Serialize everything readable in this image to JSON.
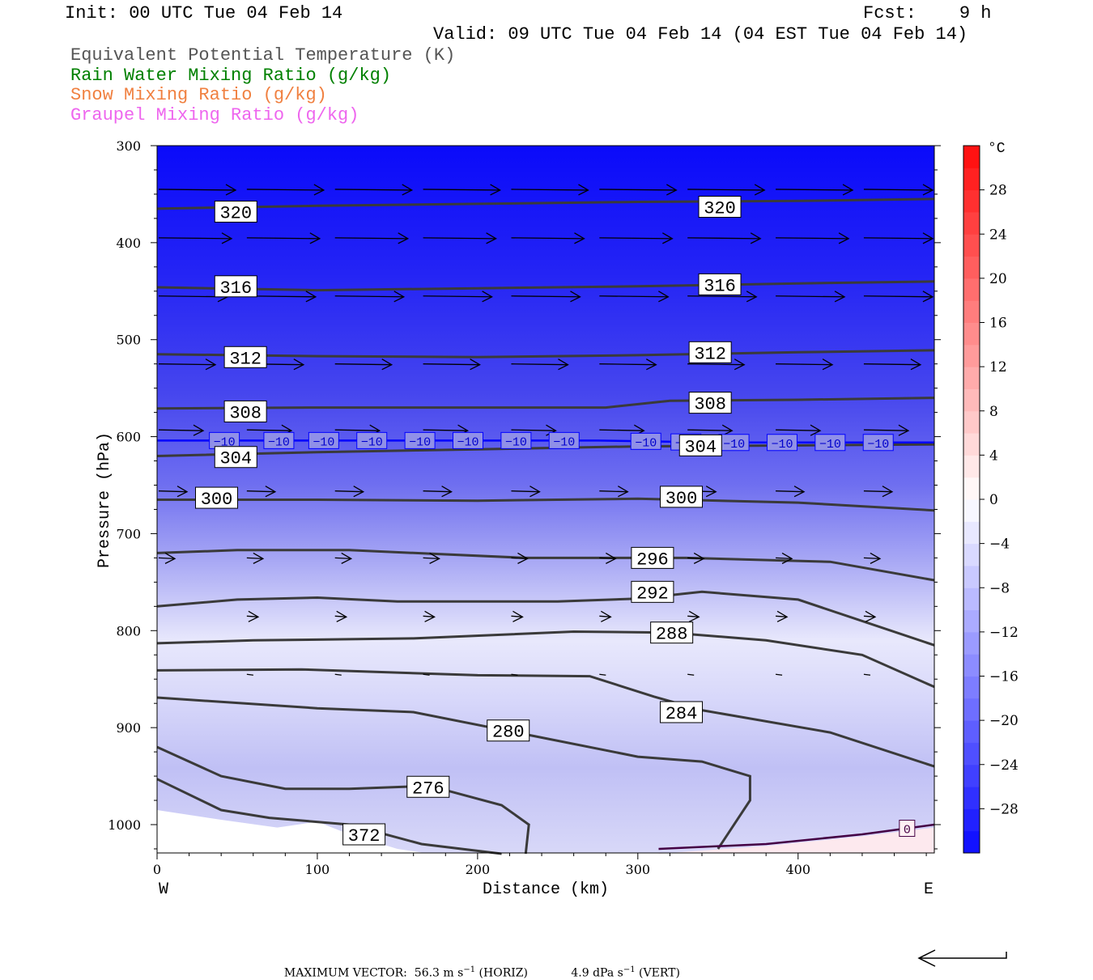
{
  "header": {
    "init": "Init: 00 UTC Tue 04 Feb 14",
    "fcst": "Fcst:    9 h",
    "valid": "Valid: 09 UTC Tue 04 Feb 14 (04 EST Tue 04 Feb 14)"
  },
  "legend": [
    {
      "label": "Equivalent Potential Temperature (K)",
      "color": "#555555"
    },
    {
      "label": "Rain Water Mixing Ratio (g/kg)",
      "color": "#008000"
    },
    {
      "label": "Snow Mixing Ratio (g/kg)",
      "color": "#f08040"
    },
    {
      "label": "Graupel Mixing Ratio (g/kg)",
      "color": "#ee66ee"
    }
  ],
  "chart_data": {
    "type": "heatmap",
    "xlabel": "Distance (km)",
    "ylabel": "Pressure (hPa)",
    "xlim": [
      0,
      485
    ],
    "ylim": [
      1030,
      300
    ],
    "x_ticks": [
      0,
      100,
      200,
      300,
      400
    ],
    "y_ticks": [
      300,
      400,
      500,
      600,
      700,
      800,
      900,
      1000
    ],
    "x_end_labels": {
      "left": "W",
      "right": "E"
    },
    "colorbar": {
      "unit": "°C",
      "range": [
        -32,
        32
      ],
      "tick_labels": [
        "28",
        "24",
        "20",
        "16",
        "12",
        "8",
        "4",
        "0",
        "−4",
        "−8",
        "−12",
        "−16",
        "−20",
        "−24",
        "−28"
      ],
      "tick_values": [
        28,
        24,
        20,
        16,
        12,
        8,
        4,
        0,
        -4,
        -8,
        -12,
        -16,
        -20,
        -24,
        -28
      ]
    },
    "theta_e_contours": [
      {
        "label": "320",
        "points": [
          [
            0,
            365
          ],
          [
            100,
            362
          ],
          [
            200,
            360
          ],
          [
            300,
            358
          ],
          [
            400,
            357
          ],
          [
            485,
            355
          ]
        ],
        "label_at": [
          36,
          368
        ]
      },
      {
        "label": "320",
        "points": [
          [
            0,
            365
          ],
          [
            485,
            355
          ]
        ],
        "label_at": [
          338,
          363
        ]
      },
      {
        "label": "316",
        "points": [
          [
            0,
            446
          ],
          [
            100,
            449
          ],
          [
            200,
            447
          ],
          [
            300,
            445
          ],
          [
            400,
            442
          ],
          [
            485,
            440
          ]
        ],
        "label_at": [
          36,
          445
        ]
      },
      {
        "label": "316",
        "points": [
          [
            0,
            446
          ],
          [
            485,
            440
          ]
        ],
        "label_at": [
          338,
          443
        ]
      },
      {
        "label": "312",
        "points": [
          [
            0,
            515
          ],
          [
            100,
            517
          ],
          [
            200,
            518
          ],
          [
            300,
            516
          ],
          [
            400,
            513
          ],
          [
            485,
            511
          ]
        ],
        "label_at": [
          42,
          518
        ]
      },
      {
        "label": "312",
        "points": [
          [
            0,
            515
          ],
          [
            485,
            511
          ]
        ],
        "label_at": [
          332,
          513
        ]
      },
      {
        "label": "308",
        "points": [
          [
            0,
            571
          ],
          [
            100,
            570
          ],
          [
            200,
            570
          ],
          [
            280,
            570
          ],
          [
            320,
            563
          ],
          [
            400,
            562
          ],
          [
            485,
            560
          ]
        ],
        "label_at": [
          42,
          574
        ]
      },
      {
        "label": "308",
        "points": [
          [
            0,
            571
          ],
          [
            485,
            560
          ]
        ],
        "label_at": [
          332,
          565
        ]
      },
      {
        "label": "304",
        "points": [
          [
            0,
            620
          ],
          [
            100,
            616
          ],
          [
            200,
            613
          ],
          [
            300,
            610
          ],
          [
            400,
            609
          ],
          [
            485,
            608
          ]
        ],
        "label_at": [
          36,
          621
        ]
      },
      {
        "label": "304",
        "points": [
          [
            0,
            620
          ],
          [
            485,
            608
          ]
        ],
        "label_at": [
          326,
          609
        ]
      },
      {
        "label": "300",
        "points": [
          [
            0,
            665
          ],
          [
            100,
            665
          ],
          [
            200,
            666
          ],
          [
            300,
            664
          ],
          [
            400,
            668
          ],
          [
            485,
            676
          ]
        ],
        "label_at": [
          24,
          663
        ]
      },
      {
        "label": "300",
        "points": [
          [
            0,
            665
          ],
          [
            485,
            676
          ]
        ],
        "label_at": [
          314,
          662
        ]
      },
      {
        "label": "296",
        "points": [
          [
            0,
            720
          ],
          [
            50,
            717
          ],
          [
            120,
            717
          ],
          [
            230,
            725
          ],
          [
            330,
            725
          ],
          [
            420,
            729
          ],
          [
            485,
            748
          ]
        ],
        "label_at": [
          296,
          725
        ]
      },
      {
        "label": "292",
        "points": [
          [
            0,
            775
          ],
          [
            50,
            768
          ],
          [
            100,
            766
          ],
          [
            150,
            770
          ],
          [
            250,
            770
          ],
          [
            300,
            767
          ],
          [
            340,
            760
          ],
          [
            400,
            768
          ],
          [
            485,
            815
          ]
        ],
        "label_at": [
          296,
          760
        ]
      },
      {
        "label": "288",
        "points": [
          [
            0,
            813
          ],
          [
            60,
            810
          ],
          [
            160,
            808
          ],
          [
            260,
            801
          ],
          [
            320,
            802
          ],
          [
            380,
            810
          ],
          [
            440,
            825
          ],
          [
            485,
            858
          ]
        ],
        "label_at": [
          308,
          802
        ]
      },
      {
        "label": "284",
        "points": [
          [
            0,
            841
          ],
          [
            90,
            840
          ],
          [
            200,
            846
          ],
          [
            270,
            847
          ],
          [
            310,
            868
          ],
          [
            340,
            882
          ],
          [
            420,
            905
          ],
          [
            485,
            940
          ]
        ],
        "label_at": [
          314,
          884
        ]
      },
      {
        "label": "280",
        "points": [
          [
            0,
            869
          ],
          [
            100,
            880
          ],
          [
            160,
            884
          ],
          [
            230,
            907
          ],
          [
            300,
            930
          ],
          [
            340,
            935
          ],
          [
            370,
            950
          ],
          [
            370,
            975
          ],
          [
            350,
            1025
          ]
        ],
        "label_at": [
          206,
          903
        ]
      },
      {
        "label": "276",
        "points": [
          [
            0,
            920
          ],
          [
            40,
            950
          ],
          [
            80,
            963
          ],
          [
            120,
            963
          ],
          [
            170,
            960
          ],
          [
            215,
            980
          ],
          [
            232,
            1000
          ],
          [
            230,
            1030
          ]
        ],
        "label_at": [
          156,
          961
        ]
      },
      {
        "label": "372",
        "points": [
          [
            0,
            953
          ],
          [
            40,
            985
          ],
          [
            70,
            993
          ],
          [
            120,
            1000
          ],
          [
            165,
            1020
          ],
          [
            215,
            1030
          ]
        ],
        "label_at": [
          116,
          1010
        ]
      }
    ],
    "temperature_contours": [
      {
        "value": -10,
        "color": "#0000ff",
        "points": [
          [
            0,
            604
          ],
          [
            150,
            604
          ],
          [
            275,
            604
          ],
          [
            350,
            606
          ],
          [
            485,
            606
          ]
        ],
        "labels_x": [
          42,
          76,
          104,
          134,
          164,
          194,
          224,
          254,
          305,
          330,
          360,
          390,
          420,
          450
        ]
      },
      {
        "value": 0,
        "color": "#440044",
        "points": [
          [
            313,
            1025
          ],
          [
            380,
            1020
          ],
          [
            440,
            1010
          ],
          [
            485,
            1000
          ]
        ],
        "labels_x": [
          468
        ]
      }
    ],
    "wind_vectors_hint": "horizontal arrows pointing east, stronger aloft",
    "max_vector_text": {
      "label": "MAXIMUM VECTOR:",
      "horiz": "56.3 m s",
      "horiz_unit": "(HORIZ)",
      "vert": "4.9 dPa s",
      "vert_unit": "(VERT)",
      "exp": "−1"
    }
  }
}
